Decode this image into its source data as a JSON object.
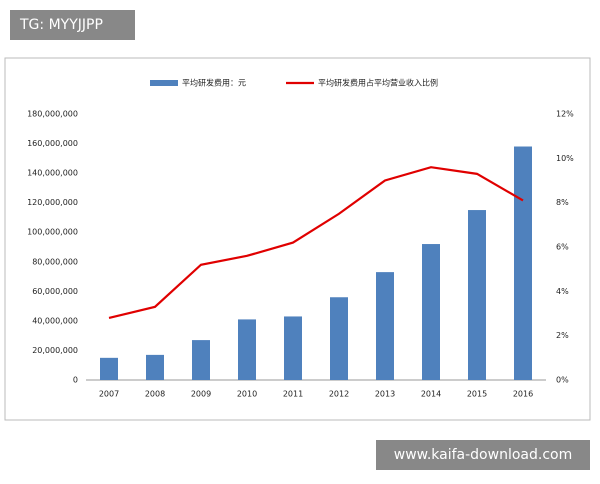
{
  "chart_data": {
    "type": "bar-line",
    "categories": [
      "2007",
      "2008",
      "2009",
      "2010",
      "2011",
      "2012",
      "2013",
      "2014",
      "2015",
      "2016"
    ],
    "series": [
      {
        "name": "平均研发费用：元",
        "type": "bar",
        "color": "#4f81bd",
        "values": [
          15000000,
          17000000,
          27000000,
          41000000,
          43000000,
          56000000,
          73000000,
          92000000,
          115000000,
          158000000
        ]
      },
      {
        "name": "平均研发费用占平均营业收入比例",
        "type": "line",
        "axis": "y2",
        "color": "#e00000",
        "values": [
          2.8,
          3.3,
          5.2,
          5.6,
          6.2,
          7.5,
          9.0,
          9.6,
          9.3,
          8.1
        ]
      }
    ],
    "ylim": [
      0,
      180000000
    ],
    "yticks": [
      0,
      {
        "value": 20000000,
        "label": "20,000,000"
      },
      {
        "value": 40000000,
        "label": "40,000,000"
      },
      {
        "value": 60000000,
        "label": "60,000,000"
      },
      {
        "value": 80000000,
        "label": "80,000,000"
      },
      {
        "value": 100000000,
        "label": "100,000,000"
      },
      {
        "value": 120000000,
        "label": "120,000,000"
      },
      {
        "value": 140000000,
        "label": "140,000,000"
      },
      {
        "value": 160000000,
        "label": "160,000,000"
      },
      {
        "value": 180000000,
        "label": "180,000,000"
      }
    ],
    "y2lim": [
      0,
      12
    ],
    "y2ticks": [
      {
        "value": 0,
        "label": "0%"
      },
      {
        "value": 2,
        "label": "2%"
      },
      {
        "value": 4,
        "label": "4%"
      },
      {
        "value": 6,
        "label": "6%"
      },
      {
        "value": 8,
        "label": "8%"
      },
      {
        "value": 10,
        "label": "10%"
      },
      {
        "value": 12,
        "label": "12%"
      }
    ],
    "grid": false,
    "legend": "top"
  },
  "badges": [
    "TG: MYYJJPP",
    "www.kaifa-download.com"
  ]
}
